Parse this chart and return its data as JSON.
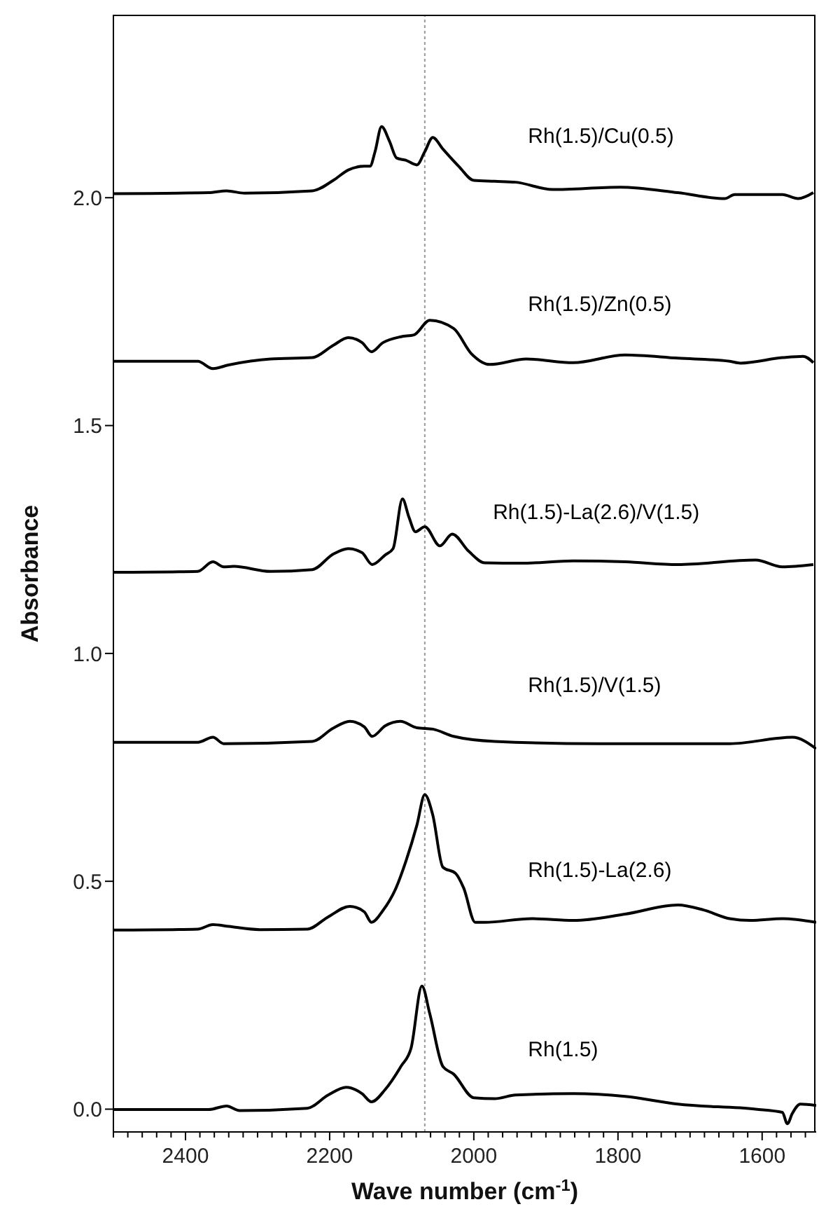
{
  "chart_data": {
    "type": "line",
    "xlabel": "Wave number (cm$^{-1}$)",
    "ylabel": "Absorbance",
    "xlim": [
      2500,
      1525
    ],
    "ylim": [
      -0.05,
      2.4
    ],
    "xticks": [
      {
        "value": 2500,
        "label": null
      },
      {
        "value": 2480,
        "label": null
      },
      {
        "value": 2460,
        "label": null
      },
      {
        "value": 2440,
        "label": null
      },
      {
        "value": 2420,
        "label": null
      },
      2400,
      {
        "value": 2380,
        "label": null
      },
      {
        "value": 2360,
        "label": null
      },
      {
        "value": 2340,
        "label": null
      },
      {
        "value": 2320,
        "label": null
      },
      {
        "value": 2300,
        "label": null
      },
      {
        "value": 2280,
        "label": null
      },
      {
        "value": 2260,
        "label": null
      },
      {
        "value": 2240,
        "label": null
      },
      {
        "value": 2220,
        "label": null
      },
      2200,
      {
        "value": 2180,
        "label": null
      },
      {
        "value": 2160,
        "label": null
      },
      {
        "value": 2140,
        "label": null
      },
      {
        "value": 2120,
        "label": null
      },
      {
        "value": 2100,
        "label": null
      },
      {
        "value": 2080,
        "label": null
      },
      {
        "value": 2060,
        "label": null
      },
      {
        "value": 2040,
        "label": null
      },
      {
        "value": 2020,
        "label": null
      },
      2000,
      {
        "value": 1980,
        "label": null
      },
      {
        "value": 1960,
        "label": null
      },
      {
        "value": 1940,
        "label": null
      },
      {
        "value": 1920,
        "label": null
      },
      {
        "value": 1900,
        "label": null
      },
      {
        "value": 1880,
        "label": null
      },
      {
        "value": 1860,
        "label": null
      },
      {
        "value": 1840,
        "label": null
      },
      {
        "value": 1820,
        "label": null
      },
      1800,
      {
        "value": 1780,
        "label": null
      },
      {
        "value": 1760,
        "label": null
      },
      {
        "value": 1740,
        "label": null
      },
      {
        "value": 1720,
        "label": null
      },
      {
        "value": 1700,
        "label": null
      },
      {
        "value": 1680,
        "label": null
      },
      {
        "value": 1660,
        "label": null
      },
      {
        "value": 1640,
        "label": null
      },
      {
        "value": 1620,
        "label": null
      },
      1600,
      {
        "value": 1580,
        "label": null
      },
      {
        "value": 1560,
        "label": null
      },
      {
        "value": 1540,
        "label": null
      }
    ],
    "yticks": [
      {
        "value": 0,
        "label": "0.0"
      },
      0.5,
      {
        "value": 1,
        "label": "1.0"
      },
      1.5,
      {
        "value": 2,
        "label": "2.0"
      }
    ],
    "marker": "none",
    "line_style": "solid",
    "ref_lines": [
      {
        "axis": "x",
        "value": 2068,
        "label": null,
        "color": "#999999",
        "line_style": "dotted"
      }
    ],
    "series": [
      {
        "name": "Rh(1.5)/Cu(0.5)",
        "color": "#000000",
        "x": [
          2500,
          2368,
          2343,
          2318,
          2224,
          2195,
          2174,
          2152,
          2144,
          2137,
          2128,
          2117,
          2107,
          2094,
          2079,
          2068,
          2057,
          2043,
          2021,
          2000,
          1971,
          1942,
          1891,
          1797,
          1717,
          1652,
          1638,
          1572,
          1550,
          1529
        ],
        "values": [
          2.009,
          2.011,
          2.015,
          2.01,
          2.015,
          2.038,
          2.061,
          2.069,
          2.069,
          2.101,
          2.156,
          2.124,
          2.087,
          2.082,
          2.072,
          2.101,
          2.132,
          2.107,
          2.069,
          2.038,
          2.036,
          2.034,
          2.018,
          2.023,
          2.011,
          1.998,
          2.007,
          2.007,
          1.998,
          2.011
        ]
      },
      {
        "name": "Rh(1.5)/Zn(0.5)",
        "color": "#000000",
        "x": [
          2500,
          2383,
          2362,
          2340,
          2282,
          2224,
          2195,
          2174,
          2155,
          2142,
          2126,
          2101,
          2083,
          2061,
          2028,
          2003,
          1978,
          1927,
          1862,
          1790,
          1717,
          1645,
          1630,
          1572,
          1543,
          1529
        ],
        "values": [
          1.641,
          1.641,
          1.625,
          1.633,
          1.646,
          1.649,
          1.676,
          1.693,
          1.682,
          1.662,
          1.682,
          1.695,
          1.699,
          1.731,
          1.713,
          1.657,
          1.634,
          1.646,
          1.638,
          1.655,
          1.648,
          1.641,
          1.637,
          1.649,
          1.652,
          1.638
        ]
      },
      {
        "name": "Rh(1.5)-La(2.6)/V(1.5)",
        "color": "#000000",
        "x": [
          2500,
          2383,
          2362,
          2347,
          2333,
          2282,
          2224,
          2195,
          2174,
          2155,
          2141,
          2123,
          2112,
          2099,
          2090,
          2081,
          2068,
          2047,
          2030,
          2007,
          1985,
          1934,
          1862,
          1790,
          1717,
          1609,
          1572,
          1529
        ],
        "values": [
          1.178,
          1.18,
          1.201,
          1.19,
          1.191,
          1.18,
          1.184,
          1.218,
          1.23,
          1.221,
          1.195,
          1.216,
          1.23,
          1.339,
          1.299,
          1.267,
          1.278,
          1.236,
          1.262,
          1.224,
          1.199,
          1.198,
          1.203,
          1.201,
          1.195,
          1.205,
          1.19,
          1.195
        ]
      },
      {
        "name": "Rh(1.5)/V(1.5)",
        "color": "#000000",
        "x": [
          2500,
          2383,
          2362,
          2347,
          2224,
          2195,
          2172,
          2152,
          2141,
          2123,
          2102,
          2079,
          2057,
          2028,
          1971,
          1826,
          1645,
          1558,
          1525
        ],
        "values": [
          0.805,
          0.805,
          0.816,
          0.802,
          0.807,
          0.836,
          0.851,
          0.839,
          0.818,
          0.841,
          0.851,
          0.837,
          0.834,
          0.818,
          0.807,
          0.802,
          0.802,
          0.816,
          0.791
        ]
      },
      {
        "name": "Rh(1.5)-La(2.6)",
        "color": "#000000",
        "x": [
          2500,
          2383,
          2362,
          2340,
          2297,
          2231,
          2202,
          2172,
          2152,
          2142,
          2126,
          2108,
          2094,
          2079,
          2068,
          2057,
          2043,
          2025,
          2014,
          1998,
          1985,
          1920,
          1862,
          1790,
          1717,
          1681,
          1645,
          1616,
          1572,
          1525
        ],
        "values": [
          0.393,
          0.395,
          0.405,
          0.401,
          0.394,
          0.395,
          0.422,
          0.445,
          0.433,
          0.41,
          0.436,
          0.485,
          0.545,
          0.623,
          0.69,
          0.646,
          0.531,
          0.517,
          0.485,
          0.41,
          0.41,
          0.418,
          0.414,
          0.428,
          0.448,
          0.437,
          0.418,
          0.414,
          0.418,
          0.41
        ]
      },
      {
        "name": "Rh(1.5)",
        "color": "#000000",
        "x": [
          2500,
          2368,
          2343,
          2325,
          2231,
          2202,
          2177,
          2155,
          2142,
          2123,
          2101,
          2087,
          2072,
          2061,
          2043,
          2028,
          2000,
          1971,
          1942,
          1862,
          1790,
          1717,
          1609,
          1572,
          1565,
          1558,
          1547,
          1525
        ],
        "values": [
          -0.001,
          -0.001,
          0.007,
          -0.003,
          0.002,
          0.031,
          0.048,
          0.034,
          0.016,
          0.043,
          0.094,
          0.134,
          0.27,
          0.209,
          0.094,
          0.077,
          0.025,
          0.023,
          0.031,
          0.034,
          0.028,
          0.011,
          0.0,
          -0.007,
          -0.032,
          -0.009,
          0.011,
          0.008
        ]
      }
    ]
  }
}
